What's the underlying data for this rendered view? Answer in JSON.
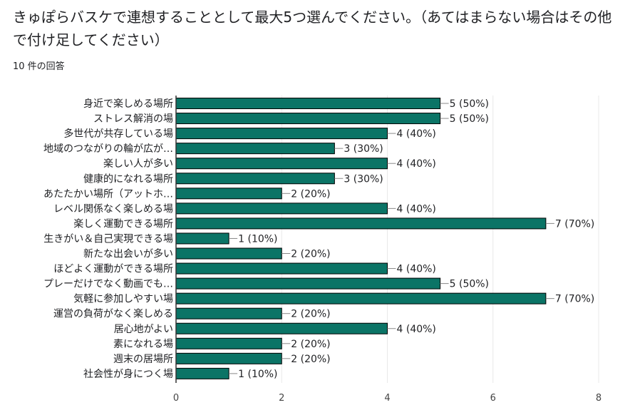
{
  "question": {
    "title": "きゅぽらバスケで連想することとして最大5つ選んでください。（あてはまらない場合はその他で付け足してください）",
    "response_count": "10 件の回答"
  },
  "colors": {
    "bar": "#0b7466",
    "grid": "#e8e8e8",
    "axis": "#333333",
    "label": "#202124"
  },
  "chart_data": {
    "type": "bar",
    "orientation": "horizontal",
    "title": "",
    "xlabel": "",
    "ylabel": "",
    "xlim": [
      0,
      8
    ],
    "x_ticks": [
      0,
      2,
      4,
      6,
      8
    ],
    "grid": true,
    "categories": [
      "身近で楽しめる場所",
      "ストレス解消の場",
      "多世代が共存している場",
      "地域のつながりの輪が広が…",
      "楽しい人が多い",
      "健康的になれる場所",
      "あたたかい場所（アットホ…",
      "レベル関係なく楽しめる場",
      "楽しく運動できる場所",
      "生きがい＆自己実現できる場",
      "新たな出会いが多い",
      "ほどよく運動ができる場所",
      "プレーだけでなく動画でも…",
      "気軽に参加しやすい場",
      "運営の負荷がなく楽しめる",
      "居心地がよい",
      "素になれる場",
      "週末の居場所",
      "社会性が身につく場"
    ],
    "values": [
      5,
      5,
      4,
      3,
      4,
      3,
      2,
      4,
      7,
      1,
      2,
      4,
      5,
      7,
      2,
      4,
      2,
      2,
      1
    ],
    "data_labels": [
      "5 (50%)",
      "5 (50%)",
      "4 (40%)",
      "3 (30%)",
      "4 (40%)",
      "3 (30%)",
      "2 (20%)",
      "4 (40%)",
      "7 (70%)",
      "1 (10%)",
      "2 (20%)",
      "4 (40%)",
      "5 (50%)",
      "7 (70%)",
      "2 (20%)",
      "4 (40%)",
      "2 (20%)",
      "2 (20%)",
      "1 (10%)"
    ]
  }
}
